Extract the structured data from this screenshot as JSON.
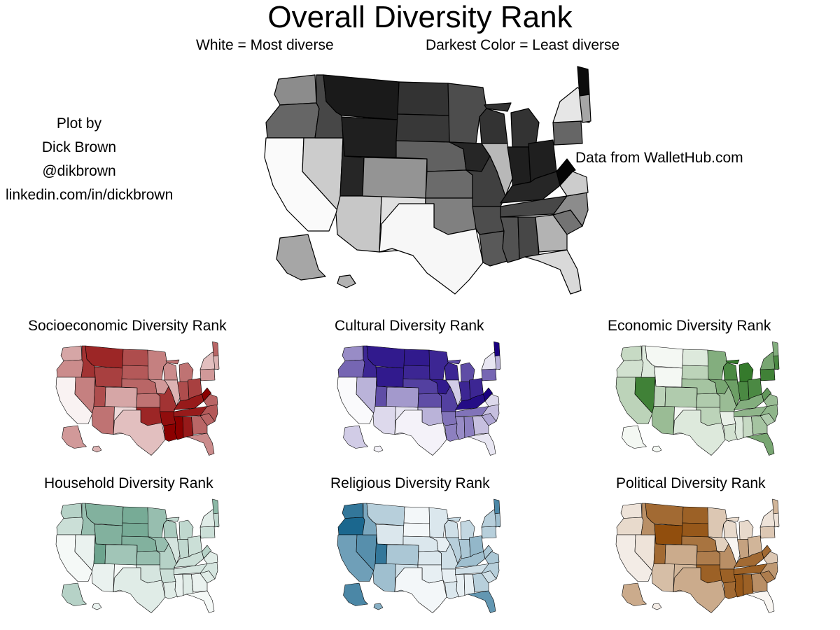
{
  "title": "Overall Diversity Rank",
  "legend_light": "White = Most diverse",
  "legend_dark": "Darkest Color = Least diverse",
  "credit": {
    "line1": "Plot by",
    "line2": "Dick Brown",
    "line3": "@dikbrown",
    "line4": "linkedin.com/in/dickbrown"
  },
  "source": "Data from WalletHub.com",
  "maps": [
    {
      "key": "overall",
      "title": "Overall Diversity Rank",
      "color_dark": "#000000"
    },
    {
      "key": "socioeconomic",
      "title": "Socioeconomic Diversity Rank",
      "color_dark": "#8b0000"
    },
    {
      "key": "cultural",
      "title": "Cultural Diversity Rank",
      "color_dark": "#1a0080"
    },
    {
      "key": "economic",
      "title": "Economic Diversity Rank",
      "color_dark": "#1e6b14"
    },
    {
      "key": "household",
      "title": "Household Diversity Rank",
      "color_dark": "#2e7d5e"
    },
    {
      "key": "religious",
      "title": "Religious Diversity Rank",
      "color_dark": "#0f5f88"
    },
    {
      "key": "political",
      "title": "Political Diversity Rank",
      "color_dark": "#8b4500"
    }
  ],
  "chart_data": {
    "type": "choropleth",
    "scale": "rank_shade_0_to_1 (0 = most diverse / white, 1 = least diverse / darkest)",
    "regions": [
      "WA",
      "OR",
      "CA",
      "NV",
      "ID",
      "MT",
      "WY",
      "UT",
      "AZ",
      "NM",
      "CO",
      "ND",
      "SD",
      "NE",
      "KS",
      "OK",
      "TX",
      "MN",
      "IA",
      "MO",
      "AR",
      "LA",
      "WI",
      "IL",
      "MI",
      "IN",
      "OH",
      "KY",
      "TN",
      "MS",
      "AL",
      "GA",
      "FL",
      "SC",
      "NC",
      "VA",
      "WV",
      "PA",
      "NY",
      "ME",
      "NE_states",
      "AK",
      "HI"
    ],
    "series": [
      {
        "name": "Overall Diversity Rank",
        "values": [
          0.45,
          0.6,
          0.02,
          0.2,
          0.72,
          0.9,
          0.88,
          0.85,
          0.22,
          0.12,
          0.42,
          0.8,
          0.78,
          0.62,
          0.58,
          0.5,
          0.03,
          0.7,
          0.85,
          0.75,
          0.7,
          0.65,
          0.8,
          0.28,
          0.8,
          0.88,
          0.88,
          0.85,
          0.72,
          0.68,
          0.72,
          0.3,
          0.15,
          0.55,
          0.45,
          0.2,
          0.98,
          0.6,
          0.1,
          0.95,
          0.35,
          0.35,
          0.3
        ]
      },
      {
        "name": "Socioeconomic Diversity Rank",
        "values": [
          0.35,
          0.45,
          0.05,
          0.5,
          0.8,
          0.85,
          0.75,
          0.7,
          0.55,
          0.15,
          0.35,
          0.7,
          0.65,
          0.6,
          0.55,
          0.85,
          0.25,
          0.5,
          0.4,
          0.8,
          0.95,
          1.0,
          0.45,
          0.3,
          0.55,
          0.7,
          0.75,
          0.9,
          0.9,
          1.0,
          0.9,
          0.6,
          0.45,
          0.6,
          0.65,
          0.6,
          1.0,
          0.4,
          0.25,
          0.6,
          0.3,
          0.4,
          0.3
        ]
      },
      {
        "name": "Cultural Diversity Rank",
        "values": [
          0.45,
          0.6,
          0.02,
          0.3,
          0.85,
          0.9,
          0.9,
          0.7,
          0.15,
          0.1,
          0.4,
          0.9,
          0.85,
          0.75,
          0.7,
          0.3,
          0.05,
          0.85,
          0.9,
          0.75,
          0.55,
          0.5,
          0.85,
          0.2,
          0.7,
          0.85,
          0.85,
          0.95,
          0.55,
          0.45,
          0.5,
          0.25,
          0.1,
          0.35,
          0.25,
          0.15,
          1.0,
          0.6,
          0.1,
          1.0,
          0.3,
          0.2,
          0.05
        ]
      },
      {
        "name": "Economic Diversity Rank",
        "values": [
          0.25,
          0.2,
          0.3,
          0.85,
          0.15,
          0.05,
          0.05,
          0.3,
          0.45,
          0.05,
          0.35,
          0.15,
          0.3,
          0.4,
          0.35,
          0.3,
          0.15,
          0.55,
          0.6,
          0.45,
          0.1,
          0.2,
          0.8,
          0.65,
          0.9,
          0.8,
          0.8,
          0.55,
          0.5,
          0.15,
          0.25,
          0.4,
          0.6,
          0.35,
          0.5,
          0.45,
          0.7,
          0.85,
          0.6,
          0.55,
          0.8,
          0.05,
          0.05
        ]
      },
      {
        "name": "Household Diversity Rank",
        "values": [
          0.35,
          0.25,
          0.05,
          0.1,
          0.5,
          0.6,
          0.6,
          0.7,
          0.1,
          0.05,
          0.45,
          0.65,
          0.65,
          0.6,
          0.5,
          0.2,
          0.15,
          0.5,
          0.5,
          0.35,
          0.25,
          0.15,
          0.4,
          0.2,
          0.3,
          0.3,
          0.25,
          0.25,
          0.2,
          0.1,
          0.15,
          0.1,
          0.05,
          0.15,
          0.2,
          0.15,
          0.35,
          0.25,
          0.15,
          0.55,
          0.3,
          0.35,
          0.1
        ]
      },
      {
        "name": "Religious Diversity Rank",
        "values": [
          0.85,
          0.95,
          0.6,
          0.7,
          0.55,
          0.3,
          0.15,
          0.85,
          0.4,
          0.2,
          0.35,
          0.05,
          0.05,
          0.15,
          0.15,
          0.1,
          0.05,
          0.15,
          0.1,
          0.2,
          0.1,
          0.15,
          0.2,
          0.3,
          0.25,
          0.35,
          0.45,
          0.4,
          0.2,
          0.1,
          0.1,
          0.3,
          0.65,
          0.2,
          0.3,
          0.35,
          0.35,
          0.3,
          0.3,
          0.75,
          0.4,
          0.75,
          0.5
        ]
      },
      {
        "name": "Political Diversity Rank",
        "values": [
          0.15,
          0.2,
          0.1,
          0.15,
          0.6,
          0.8,
          0.95,
          0.8,
          0.35,
          0.4,
          0.45,
          0.85,
          0.9,
          0.75,
          0.7,
          0.85,
          0.45,
          0.3,
          0.25,
          0.6,
          0.85,
          0.8,
          0.2,
          0.05,
          0.2,
          0.5,
          0.4,
          0.8,
          0.85,
          0.9,
          0.85,
          0.6,
          0.05,
          0.7,
          0.55,
          0.3,
          0.8,
          0.3,
          0.15,
          0.4,
          0.15,
          0.45,
          0.1
        ]
      }
    ]
  }
}
